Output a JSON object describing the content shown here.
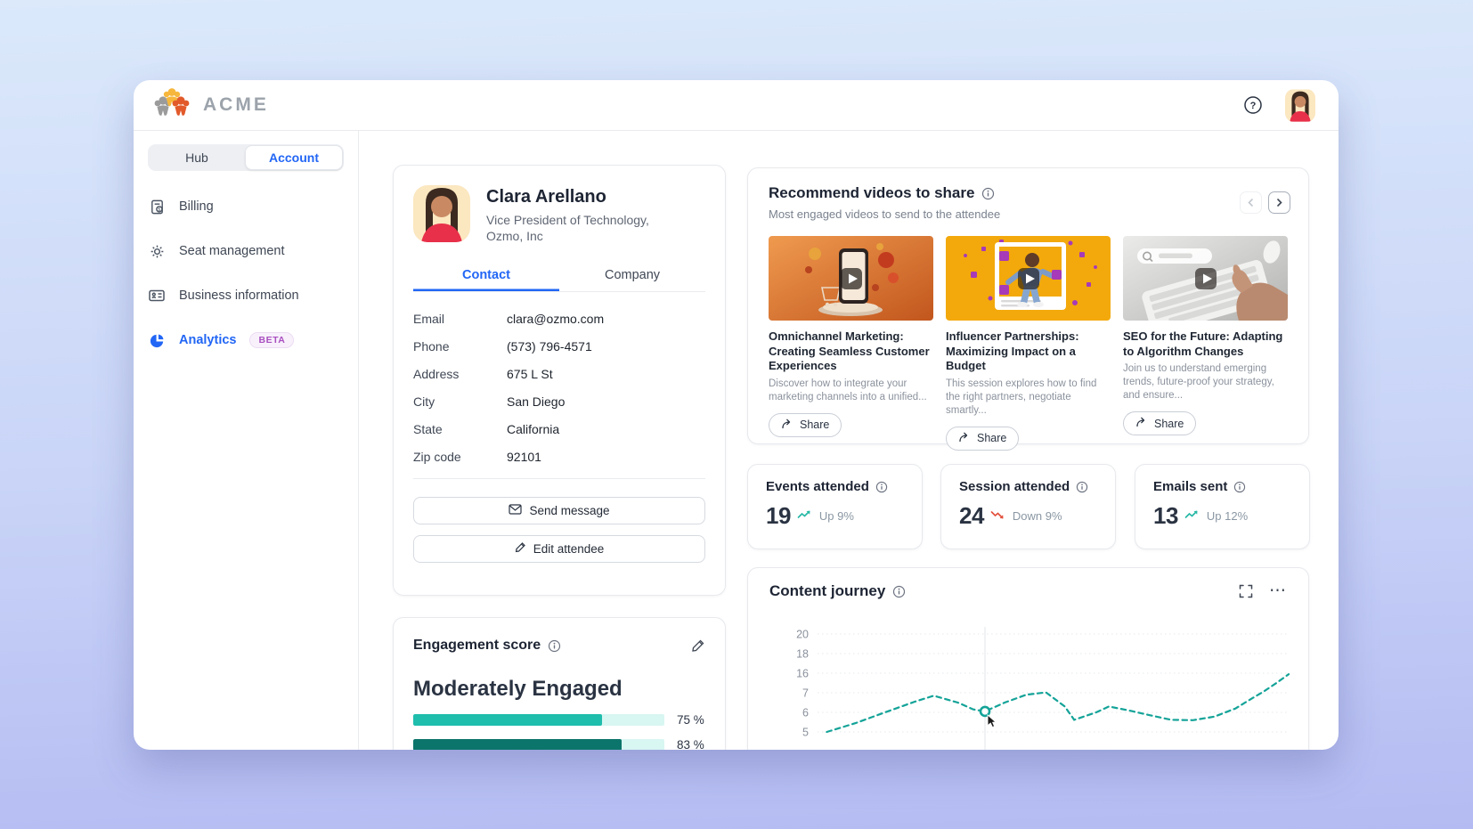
{
  "app": {
    "brand": "ACME"
  },
  "sidebar": {
    "tabs": [
      {
        "label": "Hub"
      },
      {
        "label": "Account"
      }
    ],
    "items": [
      {
        "label": "Billing",
        "icon": "invoice-icon"
      },
      {
        "label": "Seat management",
        "icon": "gear-icon"
      },
      {
        "label": "Business information",
        "icon": "id-card-icon"
      },
      {
        "label": "Analytics",
        "icon": "pie-chart-icon",
        "badge": "BETA"
      }
    ]
  },
  "profile": {
    "name": "Clara Arellano",
    "title": "Vice President of Technology, Ozmo, Inc",
    "tabs": [
      {
        "label": "Contact"
      },
      {
        "label": "Company"
      }
    ],
    "fields": [
      {
        "label": "Email",
        "value": "clara@ozmo.com"
      },
      {
        "label": "Phone",
        "value": "(573) 796-4571"
      },
      {
        "label": "Address",
        "value": "675 L St"
      },
      {
        "label": "City",
        "value": "San Diego"
      },
      {
        "label": "State",
        "value": "California"
      },
      {
        "label": "Zip code",
        "value": "92101"
      }
    ],
    "actions": [
      {
        "label": "Send message",
        "icon": "envelope-icon"
      },
      {
        "label": "Edit attendee",
        "icon": "pencil-icon"
      }
    ]
  },
  "videos": {
    "title": "Recommend videos to share",
    "subtitle": "Most engaged videos to send to the attendee",
    "share_label": "Share",
    "items": [
      {
        "title": "Omnichannel Marketing: Creating Seamless Customer Experiences",
        "description": "Discover how to integrate your marketing channels into a unified..."
      },
      {
        "title": "Influencer Partnerships: Maximizing Impact on a Budget",
        "description": "This session explores how to find the right partners, negotiate smartly..."
      },
      {
        "title": "SEO for the Future: Adapting to Algorithm Changes",
        "description": "Join us to understand emerging trends, future-proof your strategy, and ensure..."
      }
    ]
  },
  "stats": [
    {
      "label": "Events attended",
      "value": "19",
      "trend": "Up 9%",
      "direction": "up"
    },
    {
      "label": "Session attended",
      "value": "24",
      "trend": "Down 9%",
      "direction": "down"
    },
    {
      "label": "Emails sent",
      "value": "13",
      "trend": "Up 12%",
      "direction": "up"
    }
  ],
  "engagement": {
    "title": "Engagement score",
    "level": "Moderately Engaged",
    "bars": [
      {
        "percent": 75,
        "label": "75 %"
      },
      {
        "percent": 83,
        "label": "83 %"
      }
    ]
  },
  "journey": {
    "title": "Content journey"
  },
  "chart_data": {
    "type": "line",
    "title": "Content journey",
    "line_style": "dashed",
    "color": "#14a398",
    "grid": true,
    "y_axis_labels": [
      20,
      18,
      16,
      7,
      6,
      5
    ],
    "series": [
      {
        "name": "content-journey",
        "points": [
          [
            0.016,
            5.0
          ],
          [
            0.077,
            5.45
          ],
          [
            0.14,
            6.0
          ],
          [
            0.204,
            6.55
          ],
          [
            0.244,
            6.85
          ],
          [
            0.295,
            6.5
          ],
          [
            0.328,
            6.15
          ],
          [
            0.353,
            6.05
          ],
          [
            0.395,
            6.5
          ],
          [
            0.441,
            6.9
          ],
          [
            0.483,
            7.15
          ],
          [
            0.523,
            6.3
          ],
          [
            0.543,
            5.62
          ],
          [
            0.59,
            6.0
          ],
          [
            0.617,
            6.3
          ],
          [
            0.659,
            6.1
          ],
          [
            0.705,
            5.85
          ],
          [
            0.75,
            5.62
          ],
          [
            0.796,
            5.6
          ],
          [
            0.842,
            5.78
          ],
          [
            0.887,
            6.2
          ],
          [
            0.914,
            6.6
          ],
          [
            0.947,
            7.6
          ],
          [
            0.974,
            11.5
          ],
          [
            1.0,
            15.5
          ]
        ]
      }
    ],
    "hover_marker": {
      "point_index": 7,
      "value": 6.05
    }
  },
  "colors": {
    "accent_blue": "#2266f5",
    "teal": "#14a398",
    "teal_light": "#1fbdac",
    "teal_dark": "#0c756b",
    "trend_up": "#26b8a5",
    "trend_down": "#e2503c",
    "beta_purple": "#a94fc0"
  }
}
